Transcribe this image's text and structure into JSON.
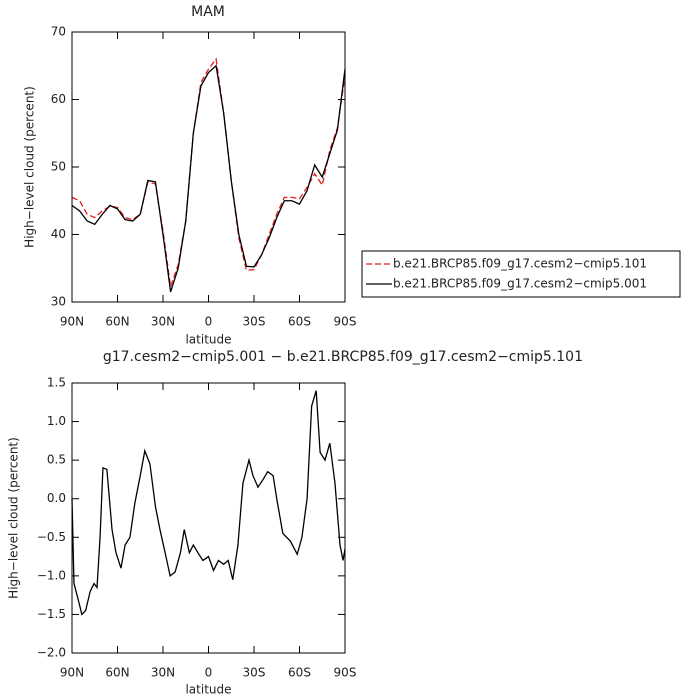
{
  "chart_data": [
    {
      "type": "line",
      "title": "MAM",
      "x_label": "latitude",
      "y_label": "High−level cloud (percent)",
      "x": [
        90,
        85,
        80,
        75,
        70,
        65,
        60,
        55,
        50,
        45,
        40,
        35,
        30,
        25,
        20,
        15,
        10,
        5,
        0,
        -5,
        -10,
        -15,
        -20,
        -25,
        -30,
        -35,
        -40,
        -45,
        -50,
        -55,
        -60,
        -65,
        -70,
        -75,
        -80,
        -85,
        -90
      ],
      "series": [
        {
          "name": "b.e21.BRCP85.f09_g17.cesm2−cmip5.101",
          "color": "#e8191c",
          "linestyle": "dashed",
          "values": [
            45.5,
            45,
            43,
            42.5,
            43.5,
            44.2,
            44,
            42.5,
            42.2,
            43,
            47.8,
            47.5,
            40.5,
            32.3,
            35.5,
            42,
            55,
            62.5,
            64.5,
            66,
            58,
            48,
            39.5,
            34.7,
            34.8,
            37,
            40,
            43,
            45.5,
            45.5,
            45.3,
            47,
            49,
            47.3,
            52.5,
            55.8,
            63.5
          ]
        },
        {
          "name": "b.e21.BRCP85.f09_g17.cesm2−cmip5.001",
          "color": "#000000",
          "linestyle": "solid",
          "values": [
            44.3,
            43.5,
            42,
            41.5,
            43,
            44.3,
            43.8,
            42.2,
            42,
            43,
            48,
            47.8,
            40,
            31.5,
            35,
            42,
            55,
            62,
            64,
            65,
            58,
            48,
            40,
            35.3,
            35.2,
            37,
            39.5,
            42.5,
            45,
            45,
            44.5,
            46.5,
            50.3,
            48.5,
            52,
            55.5,
            64.5
          ]
        }
      ],
      "xlim": [
        90,
        -90
      ],
      "xticks": [
        {
          "value": 90,
          "label": "90N"
        },
        {
          "value": 60,
          "label": "60N"
        },
        {
          "value": 30,
          "label": "30N"
        },
        0,
        {
          "value": -30,
          "label": "30S"
        },
        {
          "value": -60,
          "label": "60S"
        },
        {
          "value": -90,
          "label": "90S"
        }
      ],
      "ylim": [
        30,
        70
      ],
      "yticks": [
        30,
        40,
        50,
        60,
        70
      ],
      "legend": "right"
    },
    {
      "type": "line",
      "title": "g17.cesm2−cmip5.001 − b.e21.BRCP85.f09_g17.cesm2−cmip5.101",
      "x_label": "latitude",
      "y_label": "High−level cloud (percent)",
      "x": [
        90,
        88.7,
        86,
        83.5,
        81,
        78,
        75.5,
        73.5,
        71.5,
        69.6,
        67,
        63.6,
        61,
        57.7,
        55,
        51.8,
        48.5,
        45,
        42,
        38.6,
        35,
        32,
        28.6,
        25.3,
        22,
        18.5,
        16,
        12.6,
        10,
        7,
        3.7,
        0,
        -3.3,
        -6.6,
        -10,
        -13,
        -16,
        -19.4,
        -22.7,
        -26.7,
        -29.3,
        -32.6,
        -36,
        -39,
        -42.6,
        -45,
        -49,
        -54,
        -58.5,
        -61.6,
        -65,
        -68,
        -71,
        -73.6,
        -76.8,
        -80,
        -83.4,
        -86.7,
        -88.7,
        -90
      ],
      "values": [
        0.0,
        -1.1,
        -1.3,
        -1.5,
        -1.45,
        -1.2,
        -1.1,
        -1.15,
        -0.5,
        0.4,
        0.38,
        -0.4,
        -0.7,
        -0.9,
        -0.6,
        -0.5,
        -0.05,
        0.3,
        0.62,
        0.45,
        -0.1,
        -0.4,
        -0.7,
        -1.0,
        -0.95,
        -0.7,
        -0.4,
        -0.7,
        -0.6,
        -0.7,
        -0.8,
        -0.75,
        -0.93,
        -0.8,
        -0.85,
        -0.8,
        -1.05,
        -0.6,
        0.2,
        0.5,
        0.3,
        0.15,
        0.25,
        0.35,
        0.3,
        0.0,
        -0.45,
        -0.55,
        -0.72,
        -0.5,
        0.0,
        1.2,
        1.4,
        0.6,
        0.5,
        0.72,
        0.2,
        -0.6,
        -0.8,
        -0.65
      ],
      "color": "#000000",
      "xlim": [
        90,
        -90
      ],
      "xticks": [
        {
          "value": 90,
          "label": "90N"
        },
        {
          "value": 60,
          "label": "60N"
        },
        {
          "value": 30,
          "label": "30N"
        },
        0,
        {
          "value": -30,
          "label": "30S"
        },
        {
          "value": -60,
          "label": "60S"
        },
        {
          "value": -90,
          "label": "90S"
        }
      ],
      "ylim": [
        -2.0,
        1.5
      ],
      "yticks": [
        {
          "value": -2.0,
          "label": "−2.0"
        },
        {
          "value": -1.5,
          "label": "−1.5"
        },
        {
          "value": -1.0,
          "label": "−1.0"
        },
        {
          "value": -0.5,
          "label": "−0.5"
        },
        {
          "value": 0.0,
          "label": "0.0"
        },
        0.5,
        {
          "value": 1.0,
          "label": "1.0"
        },
        1.5
      ]
    }
  ]
}
